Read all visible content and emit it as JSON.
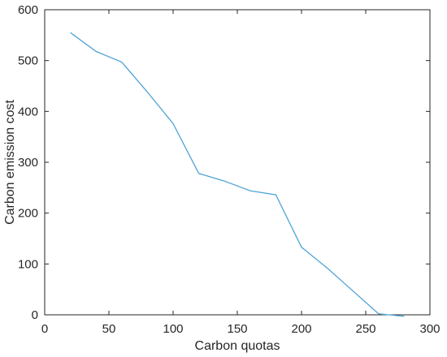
{
  "chart_data": {
    "type": "line",
    "title": "",
    "xlabel": "Carbon quotas",
    "ylabel": "Carbon emission cost",
    "xlim": [
      0,
      300
    ],
    "ylim": [
      0,
      600
    ],
    "xticks": [
      0,
      50,
      100,
      150,
      200,
      250,
      300
    ],
    "yticks": [
      0,
      100,
      200,
      300,
      400,
      500,
      600
    ],
    "grid": false,
    "box": true,
    "series": [
      {
        "color": "#4fa3d6",
        "x": [
          20,
          40,
          60,
          80,
          100,
          120,
          140,
          160,
          180,
          200,
          220,
          240,
          260,
          280
        ],
        "y": [
          555,
          518,
          497,
          438,
          376,
          278,
          263,
          244,
          236,
          133,
          92,
          47,
          2,
          -3
        ]
      }
    ]
  }
}
